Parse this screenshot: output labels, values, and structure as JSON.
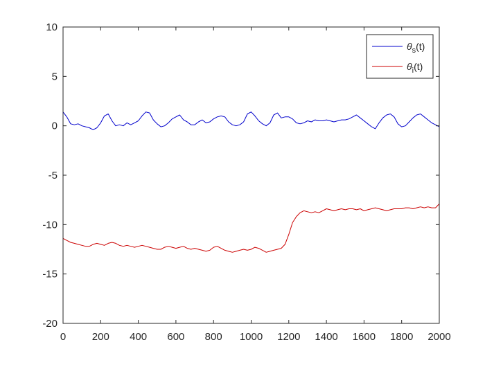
{
  "chart_data": {
    "type": "line",
    "title": "",
    "xlabel": "",
    "ylabel": "",
    "xlim": [
      0,
      2000
    ],
    "ylim": [
      -20,
      10
    ],
    "grid": false,
    "legend_position": "top-right",
    "x_ticks": [
      "0",
      "200",
      "400",
      "600",
      "800",
      "1000",
      "1200",
      "1400",
      "1600",
      "1800",
      "2000"
    ],
    "y_ticks": [
      "10",
      "5",
      "0",
      "-5",
      "-10",
      "-15",
      "-20"
    ],
    "series": [
      {
        "name": "θs(t)",
        "legend_base": "θ",
        "legend_sub": "s",
        "legend_tail": "(t)",
        "color": "#0000cc",
        "x": [
          0,
          20,
          40,
          60,
          80,
          100,
          120,
          140,
          160,
          180,
          200,
          220,
          240,
          260,
          280,
          300,
          320,
          340,
          360,
          380,
          400,
          420,
          440,
          460,
          480,
          500,
          520,
          540,
          560,
          580,
          600,
          620,
          640,
          660,
          680,
          700,
          720,
          740,
          760,
          780,
          800,
          820,
          840,
          860,
          880,
          900,
          920,
          940,
          960,
          980,
          1000,
          1020,
          1040,
          1060,
          1080,
          1100,
          1120,
          1140,
          1160,
          1180,
          1200,
          1220,
          1240,
          1260,
          1280,
          1300,
          1320,
          1340,
          1360,
          1380,
          1400,
          1420,
          1440,
          1460,
          1480,
          1500,
          1520,
          1540,
          1560,
          1580,
          1600,
          1620,
          1640,
          1660,
          1680,
          1700,
          1720,
          1740,
          1760,
          1780,
          1800,
          1820,
          1840,
          1860,
          1880,
          1900,
          1920,
          1940,
          1960,
          1980,
          2000
        ],
        "values": [
          1.4,
          0.9,
          0.2,
          0.1,
          0.2,
          0.0,
          -0.1,
          -0.2,
          -0.4,
          -0.2,
          0.3,
          1.0,
          1.2,
          0.5,
          0.0,
          0.1,
          0.0,
          0.3,
          0.1,
          0.3,
          0.5,
          1.0,
          1.4,
          1.3,
          0.6,
          0.2,
          -0.1,
          0.0,
          0.3,
          0.7,
          0.9,
          1.1,
          0.6,
          0.4,
          0.1,
          0.1,
          0.4,
          0.6,
          0.3,
          0.4,
          0.7,
          0.9,
          1.0,
          0.9,
          0.4,
          0.1,
          0.0,
          0.1,
          0.4,
          1.2,
          1.4,
          1.0,
          0.5,
          0.2,
          0.0,
          0.3,
          1.1,
          1.3,
          0.8,
          0.9,
          0.9,
          0.7,
          0.3,
          0.2,
          0.3,
          0.5,
          0.4,
          0.6,
          0.5,
          0.5,
          0.6,
          0.5,
          0.4,
          0.5,
          0.6,
          0.6,
          0.7,
          0.9,
          1.1,
          0.8,
          0.5,
          0.2,
          -0.1,
          -0.3,
          0.3,
          0.8,
          1.1,
          1.2,
          0.9,
          0.2,
          -0.1,
          0.0,
          0.4,
          0.8,
          1.1,
          1.2,
          0.9,
          0.6,
          0.3,
          0.1,
          -0.1
        ]
      },
      {
        "name": "θi(t)",
        "legend_base": "θ",
        "legend_sub": "i",
        "legend_tail": "(t)",
        "color": "#cc0000",
        "x": [
          0,
          20,
          40,
          60,
          80,
          100,
          120,
          140,
          160,
          180,
          200,
          220,
          240,
          260,
          280,
          300,
          320,
          340,
          360,
          380,
          400,
          420,
          440,
          460,
          480,
          500,
          520,
          540,
          560,
          580,
          600,
          620,
          640,
          660,
          680,
          700,
          720,
          740,
          760,
          780,
          800,
          820,
          840,
          860,
          880,
          900,
          920,
          940,
          960,
          980,
          1000,
          1020,
          1040,
          1060,
          1080,
          1100,
          1120,
          1140,
          1160,
          1180,
          1200,
          1220,
          1240,
          1260,
          1280,
          1300,
          1320,
          1340,
          1360,
          1380,
          1400,
          1420,
          1440,
          1460,
          1480,
          1500,
          1520,
          1540,
          1560,
          1580,
          1600,
          1620,
          1640,
          1660,
          1680,
          1700,
          1720,
          1740,
          1760,
          1780,
          1800,
          1820,
          1840,
          1860,
          1880,
          1900,
          1920,
          1940,
          1960,
          1980,
          2000
        ],
        "values": [
          -11.4,
          -11.6,
          -11.8,
          -11.9,
          -12.0,
          -12.1,
          -12.2,
          -12.2,
          -12.0,
          -11.9,
          -12.0,
          -12.1,
          -11.9,
          -11.8,
          -11.9,
          -12.1,
          -12.2,
          -12.1,
          -12.2,
          -12.3,
          -12.2,
          -12.1,
          -12.2,
          -12.3,
          -12.4,
          -12.5,
          -12.5,
          -12.3,
          -12.2,
          -12.3,
          -12.4,
          -12.3,
          -12.2,
          -12.4,
          -12.5,
          -12.4,
          -12.5,
          -12.6,
          -12.7,
          -12.6,
          -12.3,
          -12.2,
          -12.4,
          -12.6,
          -12.7,
          -12.8,
          -12.7,
          -12.6,
          -12.5,
          -12.6,
          -12.5,
          -12.3,
          -12.4,
          -12.6,
          -12.8,
          -12.7,
          -12.6,
          -12.5,
          -12.4,
          -12.0,
          -11.0,
          -9.8,
          -9.2,
          -8.8,
          -8.6,
          -8.7,
          -8.8,
          -8.7,
          -8.8,
          -8.6,
          -8.4,
          -8.5,
          -8.6,
          -8.5,
          -8.4,
          -8.5,
          -8.4,
          -8.4,
          -8.5,
          -8.4,
          -8.6,
          -8.5,
          -8.4,
          -8.3,
          -8.4,
          -8.5,
          -8.6,
          -8.5,
          -8.4,
          -8.4,
          -8.4,
          -8.3,
          -8.3,
          -8.4,
          -8.3,
          -8.2,
          -8.3,
          -8.2,
          -8.3,
          -8.3,
          -7.9
        ]
      }
    ]
  }
}
